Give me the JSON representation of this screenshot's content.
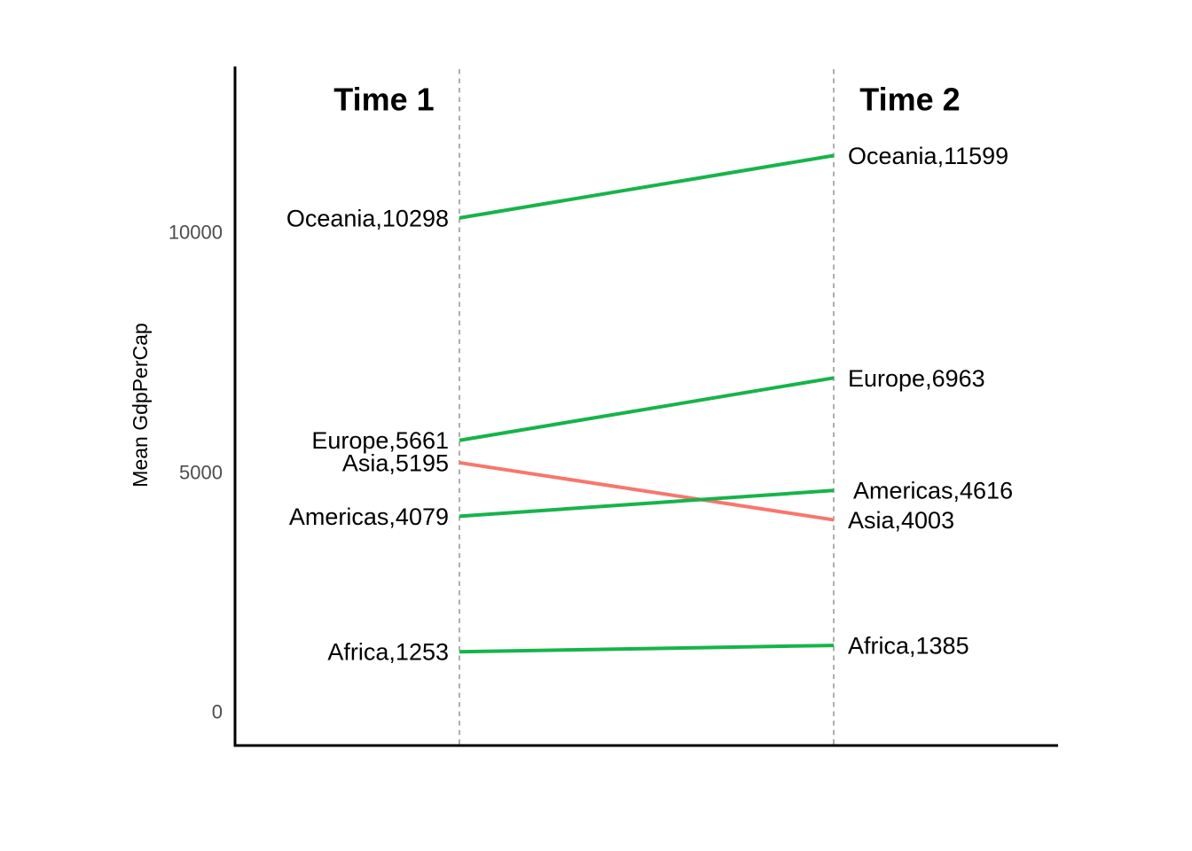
{
  "chart_data": {
    "type": "line",
    "subtype": "slopegraph",
    "title": "",
    "ylabel": "Mean GdpPerCap",
    "x_categories": [
      "Time 1",
      "Time 2"
    ],
    "column_titles": [
      "Time 1",
      "Time 2"
    ],
    "yticks": [
      0,
      5000,
      10000
    ],
    "ytick_labels": [
      "0",
      "5000",
      "10000"
    ],
    "ylim": [
      0,
      13450
    ],
    "grid": "vertical-dashed-per-column",
    "legend": "none",
    "series": [
      {
        "name": "Oceania",
        "values": [
          10298,
          11599
        ],
        "trend": "increase",
        "label_left": "Oceania,10298",
        "label_right": "Oceania,11599"
      },
      {
        "name": "Europe",
        "values": [
          5661,
          6963
        ],
        "trend": "increase",
        "label_left": "Europe,5661",
        "label_right": "Europe,6963"
      },
      {
        "name": "Asia",
        "values": [
          5195,
          4003
        ],
        "trend": "decrease",
        "label_left": "Asia,5195",
        "label_right": "Asia,4003"
      },
      {
        "name": "Americas",
        "values": [
          4079,
          4616
        ],
        "trend": "increase",
        "label_left": "Americas,4079",
        "label_right": "Americas,4616"
      },
      {
        "name": "Africa",
        "values": [
          1253,
          1385
        ],
        "trend": "increase",
        "label_left": "Africa,1253",
        "label_right": "Africa,1385"
      }
    ]
  },
  "colors": {
    "increase": "#16b44a",
    "decrease": "#f8766d",
    "axis": "#000000",
    "tick_text": "#4d4d4d",
    "gridline": "#9a9a9a",
    "label_text": "#000000",
    "background": "#ffffff"
  }
}
